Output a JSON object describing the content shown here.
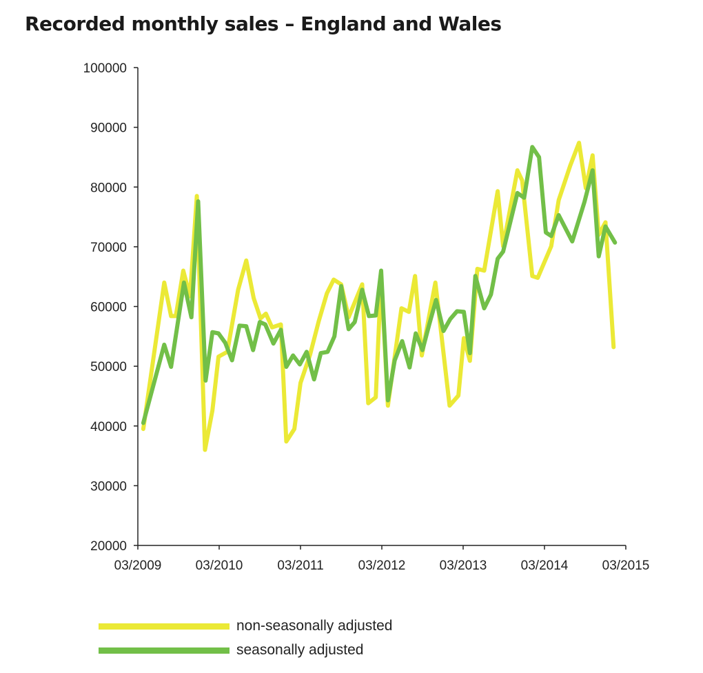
{
  "chart_data": {
    "type": "line",
    "title": "Recorded monthly sales – England and Wales",
    "xlabel": "",
    "ylabel": "",
    "x_units": "months since 03/2009",
    "xlim": [
      0,
      72
    ],
    "ylim": [
      20000,
      100000
    ],
    "x_ticks": [
      {
        "value": 0,
        "label": "03/2009"
      },
      {
        "value": 12,
        "label": "03/2010"
      },
      {
        "value": 24,
        "label": "03/2011"
      },
      {
        "value": 36,
        "label": "03/2012"
      },
      {
        "value": 48,
        "label": "03/2013"
      },
      {
        "value": 60,
        "label": "03/2014"
      },
      {
        "value": 72,
        "label": "03/2015"
      }
    ],
    "y_ticks": [
      20000,
      30000,
      40000,
      50000,
      60000,
      70000,
      80000,
      90000,
      100000
    ],
    "grid": false,
    "legend_position": "bottom-left",
    "series": [
      {
        "name": "non-seasonally adjusted",
        "color": "#ebe936",
        "points": [
          [
            0.8,
            39500
          ],
          [
            3.9,
            64000
          ],
          [
            4.9,
            58400
          ],
          [
            5.6,
            58400
          ],
          [
            6.7,
            66000
          ],
          [
            7.7,
            61700
          ],
          [
            8.7,
            78500
          ],
          [
            9.9,
            36000
          ],
          [
            11.0,
            42600
          ],
          [
            11.9,
            51600
          ],
          [
            13.2,
            52400
          ],
          [
            14.8,
            62800
          ],
          [
            16.0,
            67700
          ],
          [
            17.1,
            61400
          ],
          [
            18.1,
            58000
          ],
          [
            18.9,
            58800
          ],
          [
            19.8,
            56500
          ],
          [
            21.1,
            57000
          ],
          [
            21.9,
            37400
          ],
          [
            23.1,
            39500
          ],
          [
            24.0,
            47200
          ],
          [
            25.4,
            51900
          ],
          [
            26.7,
            57600
          ],
          [
            27.9,
            62200
          ],
          [
            28.9,
            64500
          ],
          [
            30.0,
            63700
          ],
          [
            31.1,
            58200
          ],
          [
            33.1,
            63700
          ],
          [
            34.0,
            43800
          ],
          [
            35.1,
            44800
          ],
          [
            35.9,
            65100
          ],
          [
            36.9,
            43400
          ],
          [
            38.9,
            59700
          ],
          [
            40.0,
            59100
          ],
          [
            40.9,
            65100
          ],
          [
            41.9,
            51800
          ],
          [
            43.9,
            64000
          ],
          [
            46.0,
            43400
          ],
          [
            47.3,
            45100
          ],
          [
            48.1,
            54700
          ],
          [
            49.0,
            50900
          ],
          [
            50.1,
            66300
          ],
          [
            51.1,
            66000
          ],
          [
            53.1,
            79300
          ],
          [
            53.9,
            70100
          ],
          [
            56.0,
            82800
          ],
          [
            56.7,
            81100
          ],
          [
            58.2,
            65100
          ],
          [
            59.0,
            64800
          ],
          [
            61.0,
            70100
          ],
          [
            62.1,
            77800
          ],
          [
            63.8,
            83600
          ],
          [
            65.1,
            87400
          ],
          [
            66.1,
            79800
          ],
          [
            67.1,
            85300
          ],
          [
            68.0,
            72000
          ],
          [
            69.0,
            74100
          ],
          [
            70.2,
            53200
          ]
        ]
      },
      {
        "name": "seasonally adjusted",
        "color": "#72bf48",
        "points": [
          [
            0.8,
            40500
          ],
          [
            3.9,
            53600
          ],
          [
            4.9,
            49900
          ],
          [
            6.8,
            64000
          ],
          [
            7.9,
            58200
          ],
          [
            8.9,
            77600
          ],
          [
            10.0,
            47600
          ],
          [
            11.0,
            55700
          ],
          [
            11.9,
            55500
          ],
          [
            12.9,
            53900
          ],
          [
            13.9,
            51000
          ],
          [
            15.0,
            56800
          ],
          [
            16.0,
            56700
          ],
          [
            17.0,
            52700
          ],
          [
            18.0,
            57400
          ],
          [
            18.8,
            57000
          ],
          [
            20.0,
            53800
          ],
          [
            21.1,
            56100
          ],
          [
            21.9,
            49900
          ],
          [
            22.9,
            51800
          ],
          [
            23.9,
            50300
          ],
          [
            24.9,
            52400
          ],
          [
            26.0,
            47800
          ],
          [
            27.0,
            52200
          ],
          [
            28.0,
            52400
          ],
          [
            29.0,
            55000
          ],
          [
            30.0,
            63400
          ],
          [
            31.1,
            56200
          ],
          [
            32.0,
            57400
          ],
          [
            33.1,
            62800
          ],
          [
            34.1,
            58400
          ],
          [
            35.1,
            58500
          ],
          [
            35.9,
            66000
          ],
          [
            36.9,
            44300
          ],
          [
            37.9,
            51000
          ],
          [
            39.0,
            54200
          ],
          [
            40.1,
            49800
          ],
          [
            41.0,
            55500
          ],
          [
            42.0,
            52700
          ],
          [
            43.0,
            57000
          ],
          [
            44.0,
            61100
          ],
          [
            45.1,
            55900
          ],
          [
            46.1,
            57900
          ],
          [
            47.1,
            59200
          ],
          [
            48.1,
            59100
          ],
          [
            49.0,
            52200
          ],
          [
            49.8,
            65100
          ],
          [
            51.1,
            59700
          ],
          [
            52.1,
            62000
          ],
          [
            53.1,
            68000
          ],
          [
            53.9,
            69200
          ],
          [
            56.0,
            79000
          ],
          [
            57.0,
            78200
          ],
          [
            58.2,
            86700
          ],
          [
            59.2,
            85000
          ],
          [
            60.2,
            72400
          ],
          [
            61.0,
            71800
          ],
          [
            62.1,
            75300
          ],
          [
            64.1,
            70900
          ],
          [
            65.9,
            77500
          ],
          [
            67.1,
            82800
          ],
          [
            68.0,
            68400
          ],
          [
            69.0,
            73400
          ],
          [
            70.4,
            70700
          ]
        ]
      }
    ]
  }
}
